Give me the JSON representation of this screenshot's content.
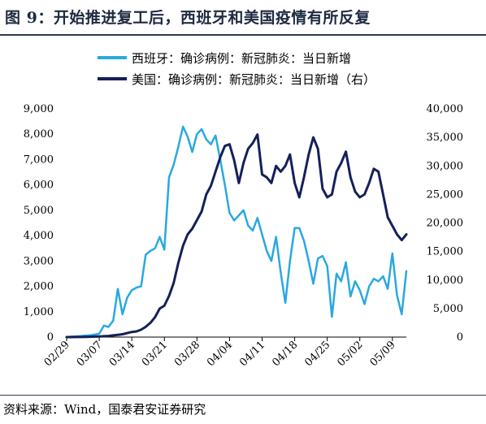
{
  "title": "图 9：开始推进复工后，西班牙和美国疫情有所反复",
  "source": "资料来源：Wind，国泰君安证券研究",
  "colors": {
    "spain": "#2aa8e0",
    "us": "#14205a",
    "rule": "#2e3b55"
  },
  "chart_data": {
    "type": "line",
    "x": [
      "02/29",
      "03/01",
      "03/02",
      "03/03",
      "03/04",
      "03/05",
      "03/06",
      "03/07",
      "03/08",
      "03/09",
      "03/10",
      "03/11",
      "03/12",
      "03/13",
      "03/14",
      "03/15",
      "03/16",
      "03/17",
      "03/18",
      "03/19",
      "03/20",
      "03/21",
      "03/22",
      "03/23",
      "03/24",
      "03/25",
      "03/26",
      "03/27",
      "03/28",
      "03/29",
      "03/30",
      "03/31",
      "04/01",
      "04/02",
      "04/03",
      "04/04",
      "04/05",
      "04/06",
      "04/07",
      "04/08",
      "04/09",
      "04/10",
      "04/11",
      "04/12",
      "04/13",
      "04/14",
      "04/15",
      "04/16",
      "04/17",
      "04/18",
      "04/19",
      "04/20",
      "04/21",
      "04/22",
      "04/23",
      "04/24",
      "04/25",
      "04/26",
      "04/27",
      "04/28",
      "04/29",
      "04/30",
      "05/01",
      "05/02",
      "05/03",
      "05/04",
      "05/05",
      "05/06",
      "05/07",
      "05/08",
      "05/09",
      "05/10",
      "05/11",
      "05/12"
    ],
    "x_tick_labels": [
      "02/29",
      "03/07",
      "03/14",
      "03/21",
      "03/28",
      "04/04",
      "04/11",
      "04/18",
      "04/25",
      "05/02",
      "05/09"
    ],
    "y_left_ticks": [
      "0",
      "1,000",
      "2,000",
      "3,000",
      "4,000",
      "5,000",
      "6,000",
      "7,000",
      "8,000",
      "9,000"
    ],
    "y_right_ticks": [
      "0",
      "5,000",
      "10,000",
      "15,000",
      "20,000",
      "25,000",
      "30,000",
      "35,000",
      "40,000"
    ],
    "ylim_left": [
      0,
      9000
    ],
    "ylim_right": [
      0,
      40000
    ],
    "series": [
      {
        "name": "西班牙：确诊病例：新冠肺炎：当日新增",
        "axis": "left",
        "color": "#2aa8e0",
        "values": [
          0,
          20,
          30,
          40,
          60,
          70,
          100,
          130,
          450,
          400,
          650,
          1900,
          900,
          1550,
          1850,
          1950,
          2000,
          3250,
          3400,
          3500,
          3950,
          3450,
          6300,
          6800,
          7500,
          8300,
          7900,
          7300,
          8000,
          8200,
          7800,
          7600,
          7950,
          7000,
          6000,
          4900,
          4600,
          4800,
          5000,
          4400,
          4200,
          4700,
          4050,
          3400,
          3000,
          3950,
          2550,
          1350,
          3000,
          4300,
          4300,
          3800,
          3000,
          2100,
          3100,
          3200,
          2800,
          800,
          2500,
          2200,
          2950,
          1600,
          2200,
          1850,
          1300,
          2000,
          2300,
          2200,
          2400,
          1900,
          3300,
          1650,
          900,
          2600
        ]
      },
      {
        "name": "美国：确诊病例：新冠肺炎：当日新增（右）",
        "axis": "right",
        "color": "#14205a",
        "values": [
          0,
          0,
          10,
          20,
          40,
          60,
          80,
          120,
          150,
          200,
          300,
          400,
          500,
          700,
          900,
          1000,
          1300,
          1800,
          2500,
          3500,
          5000,
          5500,
          7200,
          9500,
          13000,
          16000,
          18000,
          19000,
          20500,
          22000,
          25000,
          26500,
          29000,
          31500,
          33500,
          33800,
          31000,
          27000,
          30500,
          33000,
          34000,
          35500,
          28500,
          28000,
          27000,
          30000,
          29000,
          30000,
          32000,
          27000,
          24500,
          28000,
          32000,
          35000,
          33000,
          26000,
          24500,
          25000,
          29000,
          30500,
          32500,
          28000,
          25500,
          24500,
          25000,
          27000,
          29500,
          29000,
          25000,
          21000,
          19500,
          18000,
          17000,
          18000
        ]
      }
    ],
    "xlabel": "",
    "ylabel": "",
    "grid": false,
    "legend": "top-left"
  }
}
